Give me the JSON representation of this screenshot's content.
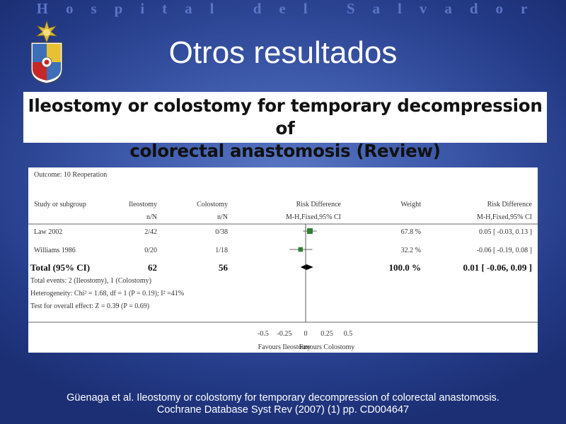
{
  "header": {
    "hospital_name": "Hospital del Salvador",
    "slide_title": "Otros resultados"
  },
  "review_title": {
    "line1": "Ileostomy or colostomy for temporary decompression of",
    "line2": "colorectal anastomosis (Review)"
  },
  "chart_data": {
    "type": "forest",
    "outcome": "Outcome:  10 Reoperation",
    "columns": {
      "study": "Study or subgroup",
      "group1": "Ileostomy",
      "group1_sub": "n/N",
      "group2": "Colostomy",
      "group2_sub": "n/N",
      "plot": "Risk Difference",
      "plot_sub": "M-H,Fixed,95% CI",
      "weight": "Weight",
      "effect": "Risk Difference",
      "effect_sub": "M-H,Fixed,95% CI"
    },
    "studies": [
      {
        "name": "Law 2002",
        "group1": "2/42",
        "group2": "0/38",
        "rd": 0.05,
        "ci_low": -0.03,
        "ci_high": 0.13,
        "weight": "67.8 %",
        "weight_value": 67.8,
        "effect_text": "0.05 [ -0.03, 0.13 ]"
      },
      {
        "name": "Williams 1986",
        "group1": "0/20",
        "group2": "1/18",
        "rd": -0.06,
        "ci_low": -0.19,
        "ci_high": 0.08,
        "weight": "32.2 %",
        "weight_value": 32.2,
        "effect_text": "-0.06 [ -0.19, 0.08 ]"
      }
    ],
    "total": {
      "label": "Total (95% CI)",
      "group1": "62",
      "group2": "56",
      "rd": 0.01,
      "ci_low": -0.06,
      "ci_high": 0.09,
      "weight": "100.0 %",
      "effect_text": "0.01 [ -0.06, 0.09 ]"
    },
    "notes": [
      "Total events: 2 (Ileostomy), 1 (Colostomy)",
      "Heterogeneity: Chi² = 1.68, df = 1 (P = 0.19); I² =41%",
      "Test for overall effect: Z = 0.39 (P = 0.69)"
    ],
    "x_range": [
      -0.5,
      0.5
    ],
    "x_ticks": [
      -0.5,
      -0.25,
      0,
      0.25,
      0.5
    ],
    "x_tick_labels": [
      "-0.5",
      "-0.25",
      "0",
      "0.25",
      "0.5"
    ],
    "favours_left": "Favours Ileostomy",
    "favours_right": "Favours Colostomy",
    "colors": {
      "study_box": "#2e7d32",
      "diamond": "#000000",
      "lines": "#333333"
    }
  },
  "citation": {
    "line1": "Güenaga et al. Ileostomy or colostomy for temporary decompression of colorectal anastomosis.",
    "line2": "Cochrane Database Syst Rev (2007) (1) pp. CD004647"
  }
}
